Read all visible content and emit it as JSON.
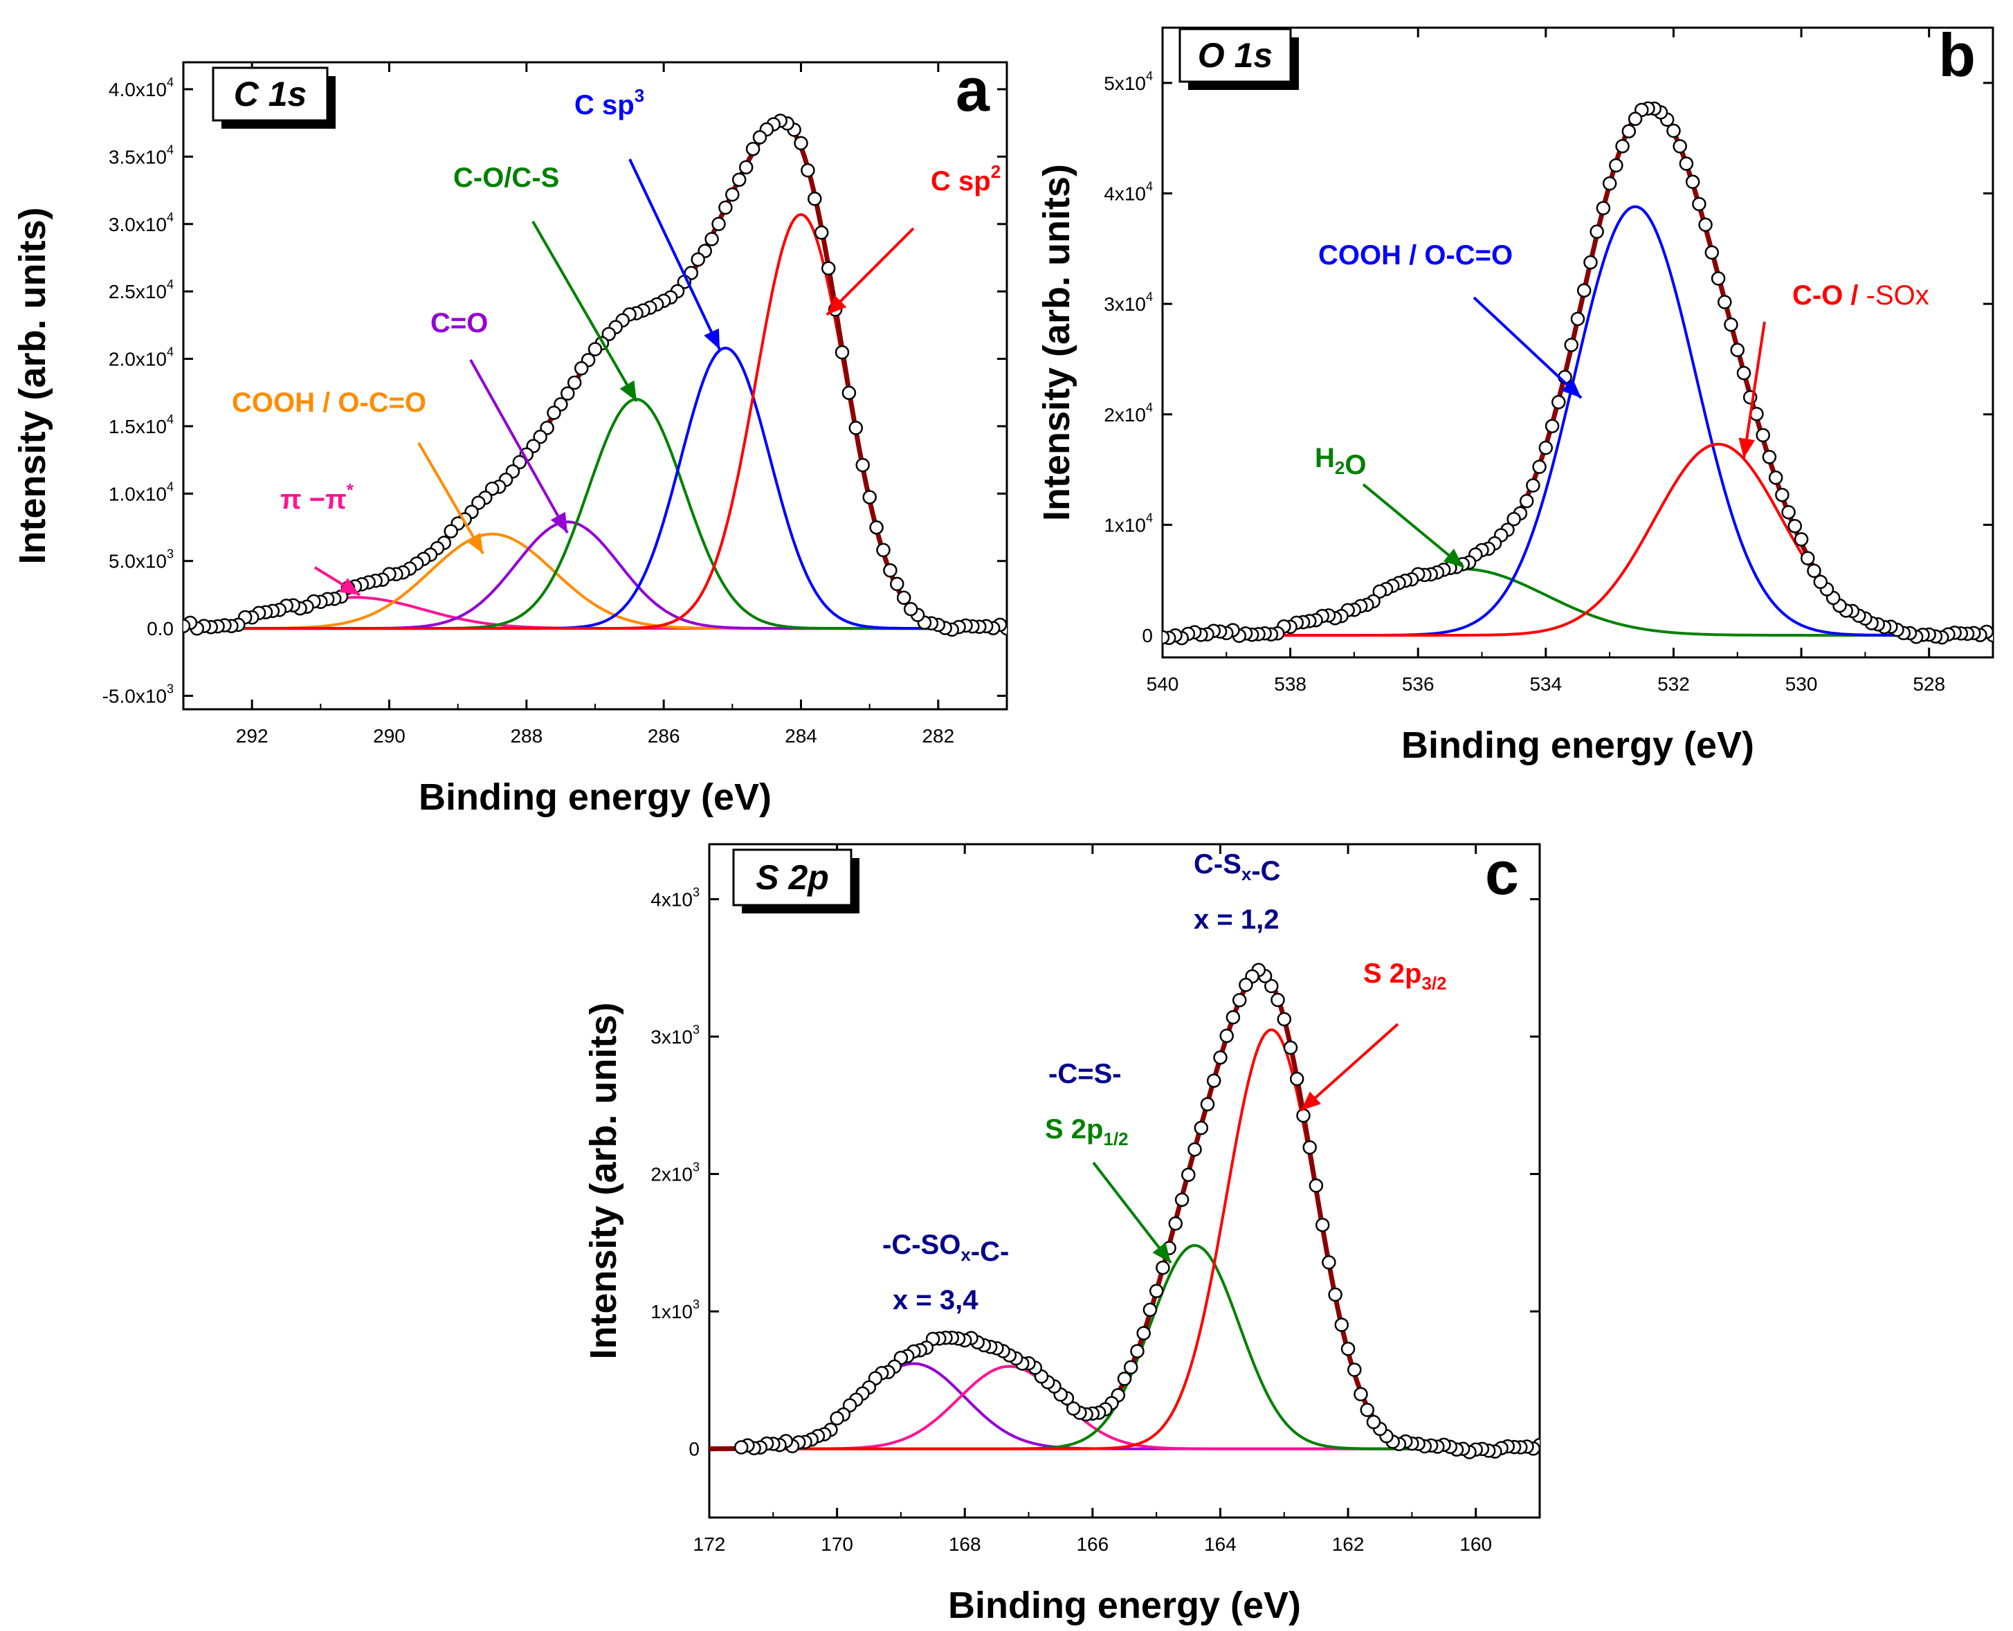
{
  "colors": {
    "fit": "#8b0000",
    "pink": "#ff1493",
    "orange": "#ff8c00",
    "violet": "#9400d3",
    "green": "#008000",
    "blue": "#0000ff",
    "red": "#ff0000",
    "navy": "#00008b"
  },
  "chart_data": [
    {
      "type": "line",
      "panel": "a",
      "box_label": "C 1s",
      "xlabel": "Binding energy (eV)",
      "ylabel": "Intensity (arb. units)",
      "xlim": [
        293,
        281
      ],
      "ylim": [
        -6000,
        42000
      ],
      "xticks": [
        292,
        290,
        288,
        286,
        284,
        282
      ],
      "yticks": [
        -5000,
        0,
        5000,
        10000,
        15000,
        20000,
        25000,
        30000,
        35000,
        40000
      ],
      "ytick_labels": [
        {
          "m": "-5.0x10",
          "e": "3"
        },
        {
          "m": "0.0",
          "e": ""
        },
        {
          "m": "5.0x10",
          "e": "3"
        },
        {
          "m": "1.0x10",
          "e": "4"
        },
        {
          "m": "1.5x10",
          "e": "4"
        },
        {
          "m": "2.0x10",
          "e": "4"
        },
        {
          "m": "2.5x10",
          "e": "4"
        },
        {
          "m": "3.0x10",
          "e": "4"
        },
        {
          "m": "3.5x10",
          "e": "4"
        },
        {
          "m": "4.0x10",
          "e": "4"
        }
      ],
      "components": [
        {
          "name": "π −π*",
          "center": 290.5,
          "amp": 2300,
          "sigma": 1.0,
          "color": "pink"
        },
        {
          "name": "COOH / O-C=O",
          "center": 288.5,
          "amp": 7000,
          "sigma": 0.9,
          "color": "orange"
        },
        {
          "name": "C=O",
          "center": 287.4,
          "amp": 7900,
          "sigma": 0.75,
          "color": "violet"
        },
        {
          "name": "C-O/C-S",
          "center": 286.4,
          "amp": 17000,
          "sigma": 0.7,
          "color": "green"
        },
        {
          "name": "C sp3",
          "center": 285.1,
          "amp": 20800,
          "sigma": 0.65,
          "color": "blue"
        },
        {
          "name": "C sp2",
          "center": 284.0,
          "amp": 30700,
          "sigma": 0.65,
          "color": "red"
        }
      ],
      "data_range": [
        293,
        281
      ],
      "data_step": 0.1,
      "annotations": [
        {
          "parts": [
            {
              "t": "C sp"
            },
            {
              "t": "3",
              "sup": true
            }
          ],
          "color": "blue"
        },
        {
          "parts": [
            {
              "t": "C sp"
            },
            {
              "t": "2",
              "sup": true
            }
          ],
          "color": "red"
        },
        {
          "parts": [
            {
              "t": "C-O/C-S"
            }
          ],
          "color": "green"
        },
        {
          "parts": [
            {
              "t": "C=O"
            }
          ],
          "color": "violet"
        },
        {
          "parts": [
            {
              "t": "COOH / O-C=O"
            }
          ],
          "color": "orange"
        },
        {
          "parts": [
            {
              "t": "π −π"
            },
            {
              "t": "*",
              "sup": true
            }
          ],
          "color": "pink"
        }
      ]
    },
    {
      "type": "line",
      "panel": "b",
      "box_label": "O 1s",
      "xlabel": "Binding energy (eV)",
      "ylabel": "Intensity (arb. units)",
      "xlim": [
        540,
        527
      ],
      "ylim": [
        -2000,
        55000
      ],
      "xticks": [
        540,
        538,
        536,
        534,
        532,
        530,
        528
      ],
      "yticks": [
        0,
        10000,
        20000,
        30000,
        40000,
        50000
      ],
      "ytick_labels": [
        {
          "m": "0",
          "e": ""
        },
        {
          "m": "1x10",
          "e": "4"
        },
        {
          "m": "2x10",
          "e": "4"
        },
        {
          "m": "3x10",
          "e": "4"
        },
        {
          "m": "4x10",
          "e": "4"
        },
        {
          "m": "5x10",
          "e": "4"
        }
      ],
      "components": [
        {
          "name": "H2O",
          "center": 535.3,
          "amp": 6000,
          "sigma": 1.3,
          "color": "green"
        },
        {
          "name": "COOH / O-C=O",
          "center": 532.6,
          "amp": 38800,
          "sigma": 0.95,
          "color": "blue"
        },
        {
          "name": "C-O / -SOx",
          "center": 531.3,
          "amp": 17300,
          "sigma": 1.0,
          "color": "red"
        }
      ],
      "data_range": [
        540,
        527
      ],
      "data_step": 0.1,
      "annotations": [
        {
          "parts": [
            {
              "t": "COOH / O-C=O"
            }
          ],
          "color": "blue"
        },
        {
          "parts": [
            {
              "t": "C-O / "
            },
            {
              "t": "-SOx",
              "nobold": true
            }
          ],
          "color": "red"
        },
        {
          "parts": [
            {
              "t": "H"
            },
            {
              "t": "2",
              "sub": true
            },
            {
              "t": "O"
            }
          ],
          "color": "green"
        }
      ]
    },
    {
      "type": "line",
      "panel": "c",
      "box_label": "S 2p",
      "xlabel": "Binding energy (eV)",
      "ylabel": "Intensity (arb. units)",
      "xlim": [
        172,
        159
      ],
      "ylim": [
        -500,
        4400
      ],
      "xticks": [
        172,
        170,
        168,
        166,
        164,
        162,
        160
      ],
      "yticks": [
        0,
        1000,
        2000,
        3000,
        4000
      ],
      "ytick_labels": [
        {
          "m": "0",
          "e": ""
        },
        {
          "m": "1x10",
          "e": "3"
        },
        {
          "m": "2x10",
          "e": "3"
        },
        {
          "m": "3x10",
          "e": "3"
        },
        {
          "m": "4x10",
          "e": "3"
        }
      ],
      "components": [
        {
          "name": "-C-SOx-C- (a)",
          "center": 168.8,
          "amp": 620,
          "sigma": 0.8,
          "color": "violet"
        },
        {
          "name": "-C-SOx-C- (b)",
          "center": 167.3,
          "amp": 600,
          "sigma": 0.8,
          "color": "pink"
        },
        {
          "name": "S 2p1/2",
          "center": 164.4,
          "amp": 1480,
          "sigma": 0.7,
          "color": "green"
        },
        {
          "name": "S 2p3/2",
          "center": 163.2,
          "amp": 3050,
          "sigma": 0.7,
          "color": "red"
        }
      ],
      "data_range": [
        171.5,
        158.9
      ],
      "data_step": 0.1,
      "annotations": [
        {
          "parts": [
            {
              "t": "C-S"
            },
            {
              "t": "x",
              "sub": true
            },
            {
              "t": "-C"
            }
          ],
          "color": "navy"
        },
        {
          "parts": [
            {
              "t": "x = 1,2"
            }
          ],
          "color": "navy"
        },
        {
          "parts": [
            {
              "t": "S 2p"
            },
            {
              "t": "3/2",
              "sub": true
            }
          ],
          "color": "red"
        },
        {
          "parts": [
            {
              "t": "-C=S-"
            }
          ],
          "color": "navy"
        },
        {
          "parts": [
            {
              "t": "S 2p"
            },
            {
              "t": "1/2",
              "sub": true
            }
          ],
          "color": "green"
        },
        {
          "parts": [
            {
              "t": "-C-SO"
            },
            {
              "t": "x",
              "sub": true
            },
            {
              "t": "-C-"
            }
          ],
          "color": "navy"
        },
        {
          "parts": [
            {
              "t": "x = 3,4"
            }
          ],
          "color": "navy"
        }
      ]
    }
  ]
}
